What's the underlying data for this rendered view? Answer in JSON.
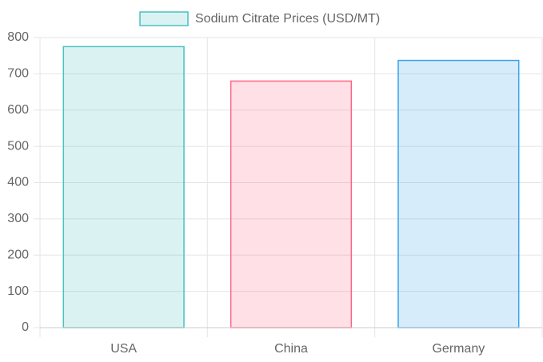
{
  "chart_data": {
    "type": "bar",
    "categories": [
      "USA",
      "China",
      "Germany"
    ],
    "series": [
      {
        "name": "Sodium Citrate Prices (USD/MT)",
        "values": [
          775,
          680,
          737
        ],
        "colors": [
          "rgba(75,192,192,0.2)",
          "rgba(255,99,132,0.2)",
          "rgba(54,162,235,0.2)"
        ],
        "border_colors": [
          "rgb(75,192,192)",
          "rgb(255,99,132)",
          "rgb(54,162,235)"
        ]
      }
    ],
    "ylim": [
      0,
      800
    ],
    "yticks": [
      0,
      100,
      200,
      300,
      400,
      500,
      600,
      700,
      800
    ],
    "grid": true,
    "legend": "top"
  }
}
